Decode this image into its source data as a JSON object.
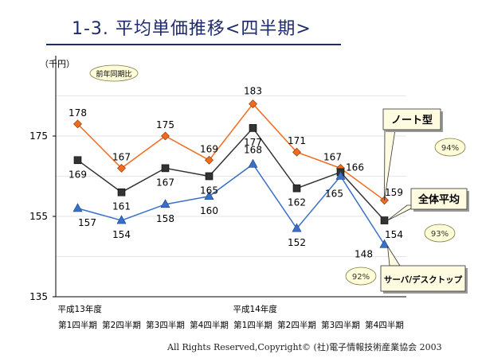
{
  "slide_title": "1-3. 平均単価推移<四半期>",
  "footer": "All Rights Reserved,Copyright© (社)電子情報技術産業協会 2003",
  "chart_data": {
    "type": "line",
    "ylabel": "（千円）",
    "ylim": [
      135,
      195
    ],
    "yticks": [
      135,
      155,
      175
    ],
    "grid": true,
    "categories": [
      "第1四半期",
      "第2四半期",
      "第3四半期",
      "第4四半期",
      "第1四半期",
      "第2四半期",
      "第3四半期",
      "第4四半期"
    ],
    "year_labels": [
      {
        "at": 0,
        "text": "平成13年度"
      },
      {
        "at": 4,
        "text": "平成14年度"
      }
    ],
    "legend_note": "前年同期比",
    "series": [
      {
        "name": "ノート型",
        "color": "#f26b1d",
        "marker": "diamond",
        "values": [
          178,
          167,
          175,
          169,
          183,
          171,
          167,
          159
        ],
        "yoy": "94%"
      },
      {
        "name": "全体平均",
        "color": "#333333",
        "marker": "square",
        "values": [
          169,
          161,
          167,
          165,
          177,
          162,
          166,
          154
        ],
        "yoy": "93%"
      },
      {
        "name": "サーバ/デスクトップ",
        "color": "#3a6fc9",
        "marker": "triangle",
        "values": [
          157,
          154,
          158,
          160,
          168,
          152,
          165,
          148
        ],
        "yoy": "92%"
      }
    ],
    "colors": {
      "grid": "#e6e6e6",
      "axis": "#000000",
      "callout_fill": "#fffbe0",
      "yoy_fill": "#fffdd8"
    }
  }
}
